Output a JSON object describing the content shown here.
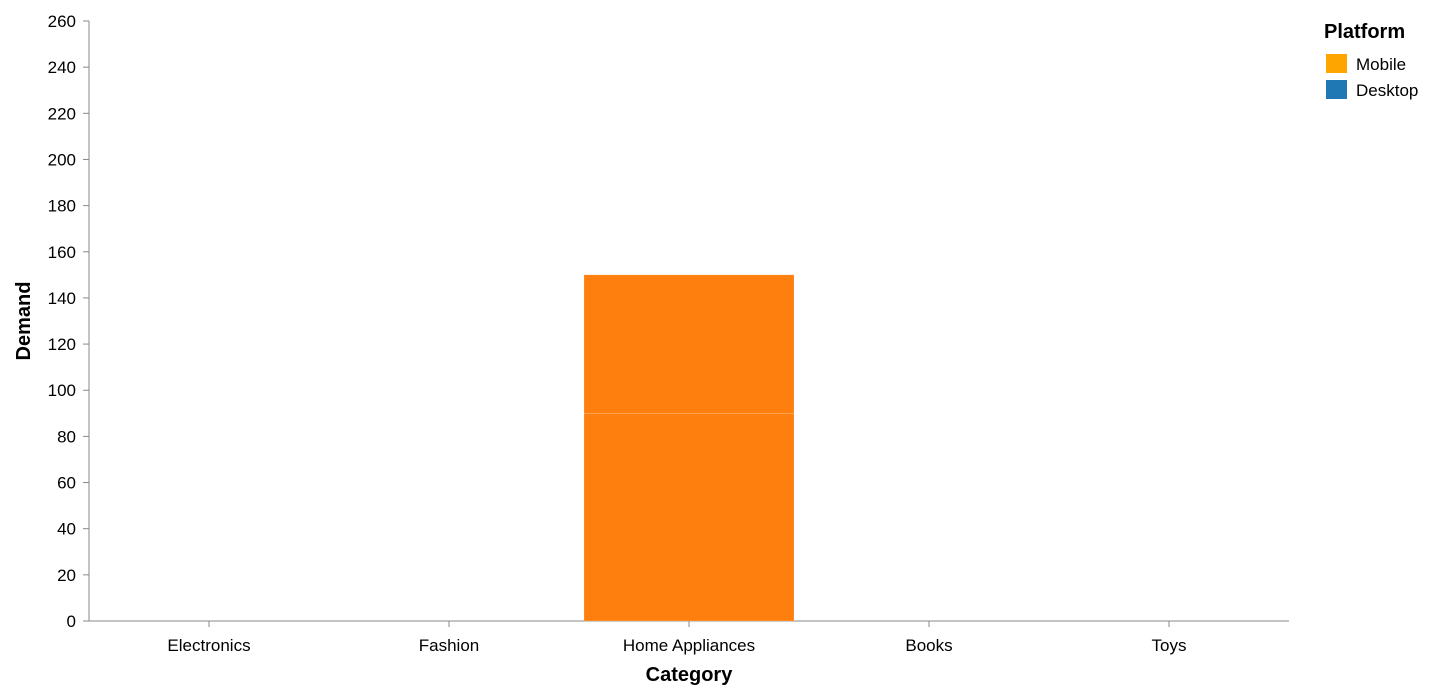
{
  "chart_data": {
    "type": "bar",
    "stacked": true,
    "xlabel": "Category",
    "ylabel": "Demand",
    "ylim": [
      0,
      260
    ],
    "yticks": [
      0,
      20,
      40,
      60,
      80,
      100,
      120,
      140,
      160,
      180,
      200,
      220,
      240,
      260
    ],
    "categories": [
      "Electronics",
      "Fashion",
      "Home Appliances",
      "Books",
      "Toys"
    ],
    "series": [
      {
        "name": "Mobile",
        "color": "#FFA500",
        "bar_color": "#FF7F0E",
        "values": [
          0,
          0,
          90,
          0,
          0
        ]
      },
      {
        "name": "Desktop",
        "color": "#1F77B4",
        "bar_color": "#FF7F0E",
        "values": [
          0,
          0,
          60,
          0,
          0
        ]
      }
    ],
    "legend": {
      "title": "Platform",
      "placement": "top-right"
    },
    "grid": false
  }
}
